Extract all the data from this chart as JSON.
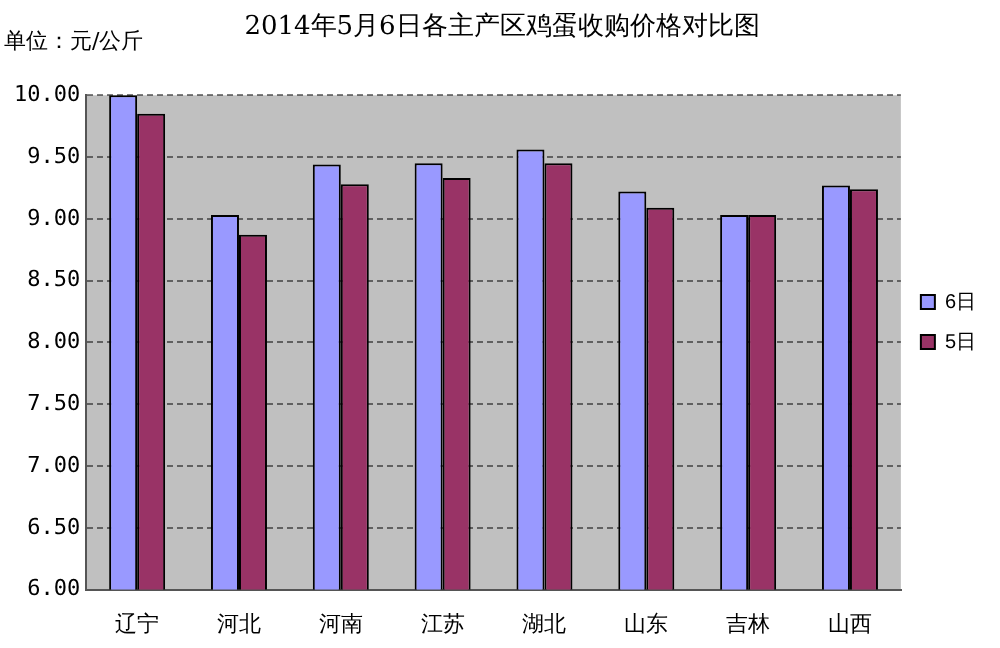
{
  "chart_data": {
    "type": "bar",
    "title": "2014年5月6日各主产区鸡蛋收购价格对比图",
    "ylabel": "单位：元/公斤",
    "categories": [
      "辽宁",
      "河北",
      "河南",
      "江苏",
      "湖北",
      "山东",
      "吉林",
      "山西"
    ],
    "series": [
      {
        "name": "6日",
        "color": "#9999ff",
        "values": [
          10.0,
          9.03,
          9.44,
          9.45,
          9.56,
          9.22,
          9.03,
          9.27
        ]
      },
      {
        "name": "5日",
        "color": "#993366",
        "values": [
          9.85,
          8.87,
          9.28,
          9.33,
          9.45,
          9.09,
          9.03,
          9.24
        ]
      }
    ],
    "ylim": [
      6,
      10
    ],
    "yticks": [
      {
        "value": 6,
        "label": "6.00"
      },
      {
        "value": 6.5,
        "label": "6.50"
      },
      {
        "value": 7,
        "label": "7.00"
      },
      {
        "value": 7.5,
        "label": "7.50"
      },
      {
        "value": 8,
        "label": "8.00"
      },
      {
        "value": 8.5,
        "label": "8.50"
      },
      {
        "value": 9,
        "label": "9.00"
      },
      {
        "value": 9.5,
        "label": "9.50"
      },
      {
        "value": 10,
        "label": "10.00"
      }
    ],
    "grid": "y",
    "legend": "right",
    "line_style": "dashed"
  }
}
